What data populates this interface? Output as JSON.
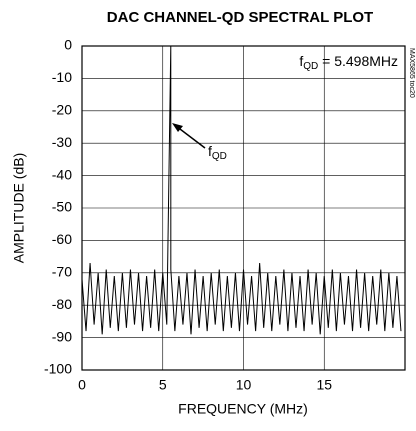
{
  "chart_data": {
    "type": "line",
    "title": "DAC CHANNEL-QD SPECTRAL PLOT",
    "xlabel": "FREQUENCY (MHz)",
    "ylabel": "AMPLITUDE (dB)",
    "side_note": "MAX5865 toc20",
    "annotation": {
      "main": "f",
      "sub": "QD",
      "rest": " = 5.498MHz"
    },
    "arrow_label": {
      "main": "f",
      "sub": "QD"
    },
    "xlim": [
      0,
      20
    ],
    "ylim": [
      -100,
      0
    ],
    "xticks": [
      0,
      5,
      10,
      15
    ],
    "yticks": [
      0,
      -10,
      -20,
      -30,
      -40,
      -50,
      -60,
      -70,
      -80,
      -90,
      -100
    ],
    "grid": true,
    "x": [
      0,
      0.25,
      0.5,
      0.75,
      1,
      1.25,
      1.5,
      1.75,
      2,
      2.25,
      2.5,
      2.75,
      3,
      3.25,
      3.5,
      3.75,
      4,
      4.25,
      4.5,
      4.75,
      5,
      5.25,
      5.498,
      5.5,
      5.75,
      6,
      6.25,
      6.5,
      6.75,
      7,
      7.25,
      7.5,
      7.75,
      8,
      8.25,
      8.5,
      8.75,
      9,
      9.25,
      9.5,
      9.75,
      10,
      10.25,
      10.5,
      10.75,
      11,
      11.25,
      11.5,
      11.75,
      12,
      12.25,
      12.5,
      12.75,
      13,
      13.25,
      13.5,
      13.75,
      14,
      14.25,
      14.5,
      14.75,
      15,
      15.25,
      15.5,
      15.75,
      16,
      16.25,
      16.5,
      16.75,
      17,
      17.25,
      17.5,
      17.75,
      18,
      18.25,
      18.5,
      18.75,
      19,
      19.25,
      19.5,
      19.75
    ],
    "series": [
      {
        "name": "spectrum",
        "color": "#000000",
        "values": [
          -72,
          -88,
          -67,
          -86,
          -70,
          -89,
          -69,
          -87,
          -71,
          -88,
          -70,
          -87,
          -69,
          -86,
          -70,
          -88,
          -71,
          -87,
          -69,
          -88,
          -70,
          -86,
          0,
          -69,
          -88,
          -71,
          -86,
          -70,
          -89,
          -69,
          -87,
          -71,
          -88,
          -70,
          -86,
          -69,
          -88,
          -71,
          -87,
          -70,
          -88,
          -69,
          -86,
          -71,
          -88,
          -67,
          -87,
          -70,
          -88,
          -71,
          -86,
          -69,
          -88,
          -70,
          -87,
          -71,
          -88,
          -69,
          -86,
          -70,
          -89,
          -71,
          -87,
          -69,
          -88,
          -70,
          -86,
          -71,
          -88,
          -69,
          -87,
          -70,
          -88,
          -71,
          -86,
          -69,
          -88,
          -70,
          -87,
          -71,
          -88
        ]
      }
    ]
  }
}
